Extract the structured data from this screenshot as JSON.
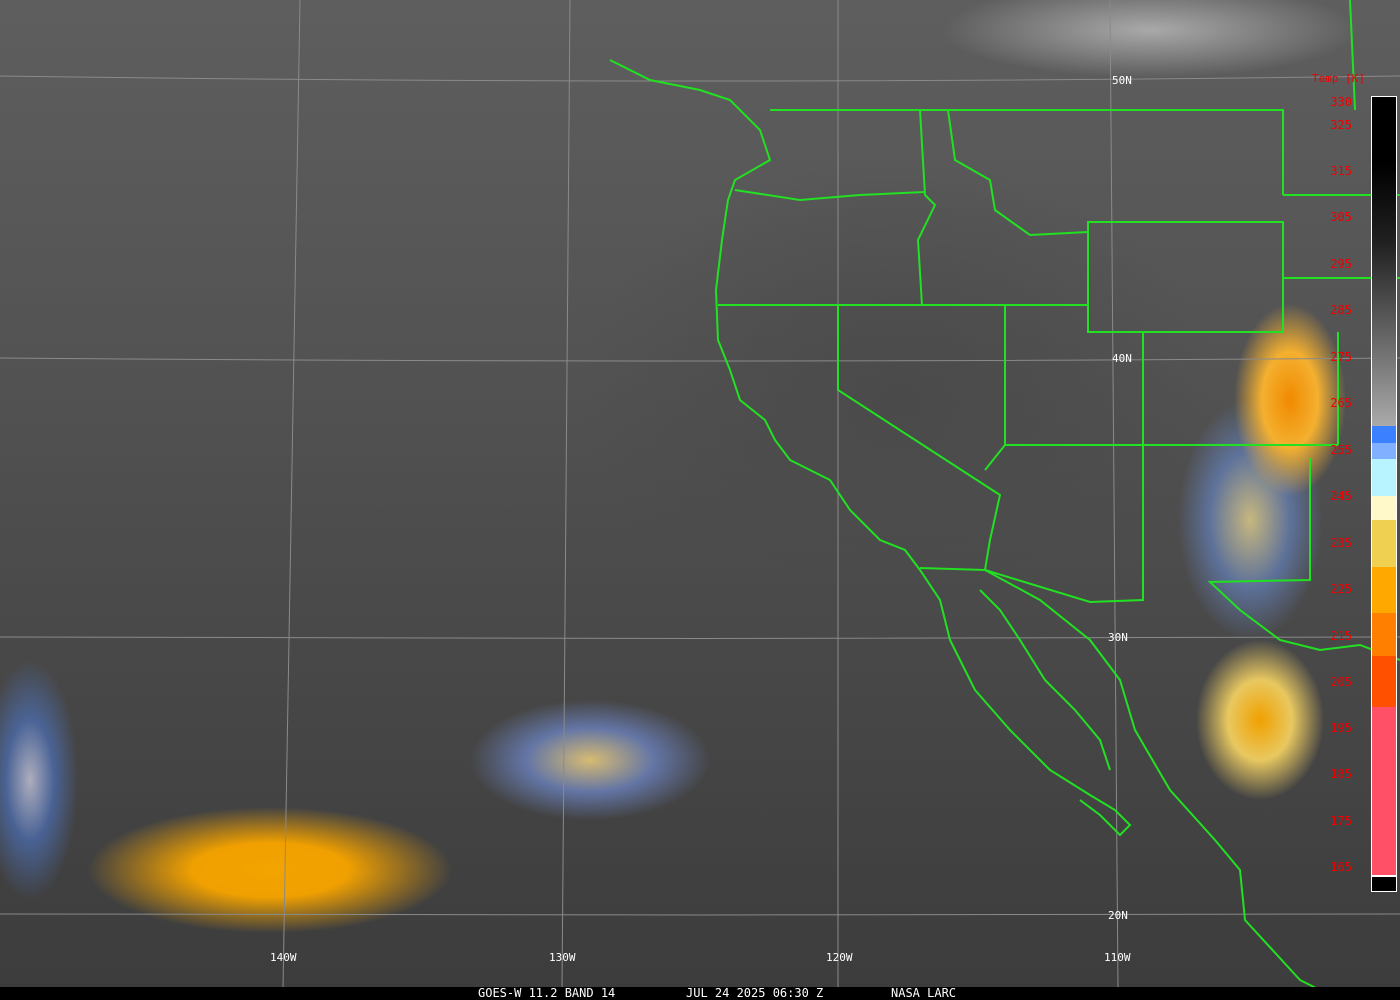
{
  "latitude_labels": [
    "50N",
    "40N",
    "30N",
    "20N"
  ],
  "longitude_labels": [
    "140W",
    "130W",
    "120W",
    "110W"
  ],
  "colorbar": {
    "title": "Temp [K]",
    "ticks": [
      "330",
      "325",
      "315",
      "305",
      "295",
      "285",
      "275",
      "265",
      "255",
      "245",
      "235",
      "225",
      "215",
      "205",
      "195",
      "185",
      "175",
      "165"
    ],
    "colors": {
      "blue": "#3a80ff",
      "mid_blue": "#80b0ff",
      "light_blue": "#b8f4ff",
      "cream": "#fff8c8",
      "yellow": "#f0d050",
      "gold": "#ffa800",
      "orange": "#ff8000",
      "red_orange": "#ff5000",
      "pink": "#ff5068"
    }
  },
  "border_color": "#22e022",
  "footer": {
    "satellite": "GOES-W 11.2 BAND 14",
    "datetime": "JUL 24 2025 06:30 Z",
    "source": "NASA LARC"
  }
}
